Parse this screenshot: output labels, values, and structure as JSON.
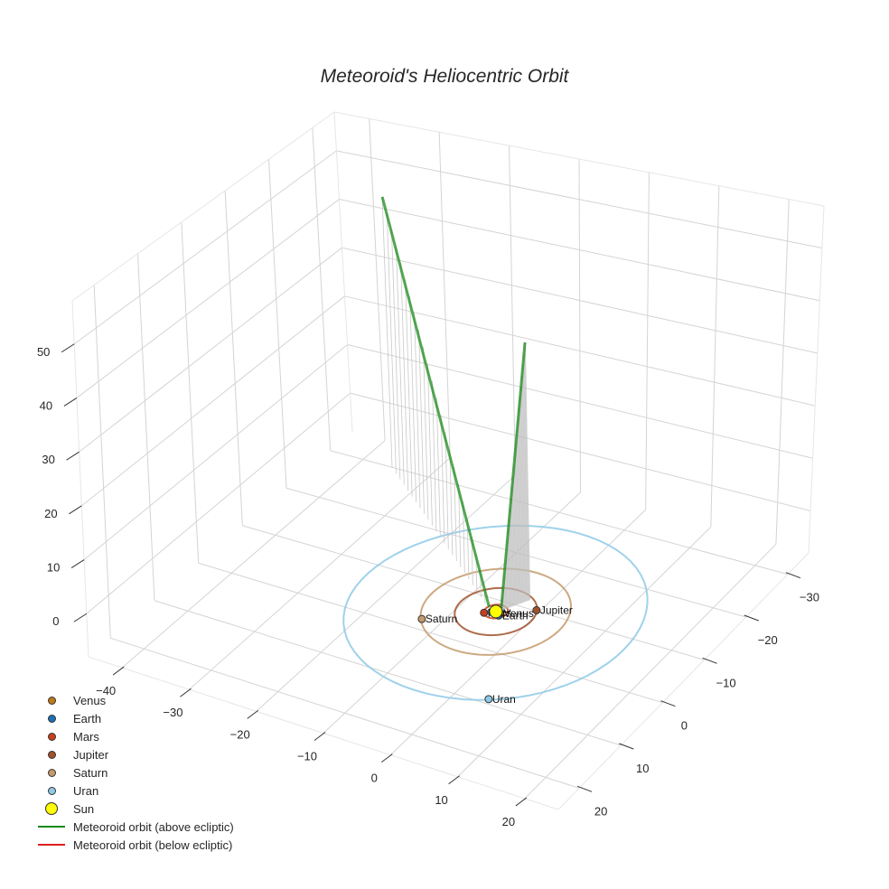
{
  "title": "Meteoroid's Heliocentric Orbit",
  "legend": [
    {
      "label": "Venus",
      "type": "marker",
      "color": "#c07a16",
      "size": 9
    },
    {
      "label": "Earth",
      "type": "marker",
      "color": "#1f6fb5",
      "size": 9
    },
    {
      "label": "Mars",
      "type": "marker",
      "color": "#c8401a",
      "size": 9
    },
    {
      "label": "Jupiter",
      "type": "marker",
      "color": "#a0522d",
      "size": 9
    },
    {
      "label": "Saturn",
      "type": "marker",
      "color": "#c49a6c",
      "size": 9
    },
    {
      "label": "Uran",
      "type": "marker",
      "color": "#8ecae6",
      "size": 9
    },
    {
      "label": "Sun",
      "type": "marker",
      "color": "#ffff00",
      "size": 14
    },
    {
      "label": "Meteoroid orbit (above ecliptic)",
      "type": "line",
      "color": "#1a8a1a"
    },
    {
      "label": "Meteoroid orbit (below ecliptic)",
      "type": "line",
      "color": "#e02020"
    }
  ],
  "chart_data": {
    "type": "scatter3d",
    "title": "Meteoroid's Heliocentric Orbit",
    "xlabel": "",
    "ylabel": "",
    "zlabel": "",
    "x_ticks": [
      -40,
      -30,
      -20,
      -10,
      0,
      10,
      20
    ],
    "y_ticks": [
      -30,
      -20,
      -10,
      0,
      10,
      20
    ],
    "z_ticks": [
      0,
      10,
      20,
      30,
      40,
      50
    ],
    "xlim": [
      -45,
      25
    ],
    "ylim": [
      -35,
      25
    ],
    "zlim": [
      -8,
      58
    ],
    "grid": true,
    "legend_position": "lower left",
    "planets": [
      {
        "name": "Venus",
        "x": 0.7,
        "y": 0.1,
        "z": 0,
        "color": "#c07a16",
        "orbit_radius": 0.72
      },
      {
        "name": "Earth",
        "x": 0.8,
        "y": 0.6,
        "z": 0,
        "color": "#1f6fb5",
        "orbit_radius": 1.0
      },
      {
        "name": "Mars",
        "x": -1.2,
        "y": 0.9,
        "z": 0,
        "color": "#c8401a",
        "orbit_radius": 1.52
      },
      {
        "name": "Jupiter",
        "x": 4.5,
        "y": -2.5,
        "z": 0,
        "color": "#a0522d",
        "orbit_radius": 5.2
      },
      {
        "name": "Saturn",
        "x": -7.5,
        "y": 5.6,
        "z": 0,
        "color": "#c49a6c",
        "orbit_radius": 9.5
      },
      {
        "name": "Uran",
        "x": 9.5,
        "y": 16.5,
        "z": 0,
        "color": "#8ecae6",
        "orbit_radius": 19.2
      },
      {
        "name": "Sun",
        "x": 0,
        "y": 0,
        "z": 0,
        "color": "#ffff00",
        "orbit_radius": 0
      }
    ],
    "series": [
      {
        "name": "Meteoroid orbit (above ecliptic)",
        "color": "#1a8a1a",
        "segments": [
          [
            {
              "x": -30,
              "y": -22,
              "z": 54
            },
            {
              "x": -1,
              "y": 0,
              "z": 0.5
            }
          ],
          [
            {
              "x": 0.5,
              "y": -0.5,
              "z": 0.5
            },
            {
              "x": 2.5,
              "y": -4,
              "z": 50
            }
          ]
        ]
      },
      {
        "name": "Meteoroid orbit (below ecliptic)",
        "color": "#e02020",
        "segments": []
      }
    ]
  }
}
